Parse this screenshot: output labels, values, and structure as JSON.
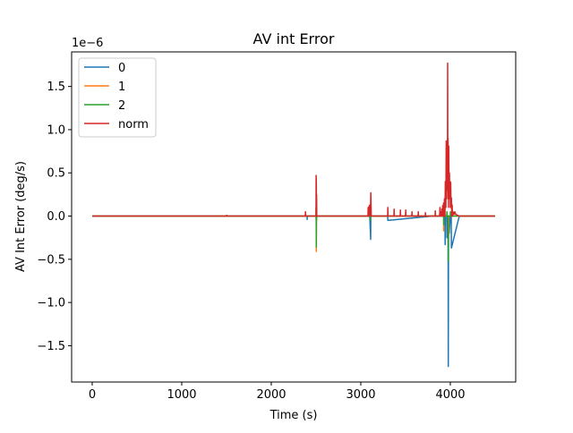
{
  "chart_data": {
    "type": "line",
    "title": "AV int Error",
    "xlabel": "Time (s)",
    "ylabel": "AV Int Error (deg/s)",
    "offset_label": "1e−6",
    "xlim": [
      -230,
      4730
    ],
    "ylim": [
      -1.92,
      1.9
    ],
    "x_ticks": [
      {
        "value": 0,
        "label": "0"
      },
      {
        "value": 1000,
        "label": "1000"
      },
      {
        "value": 2000,
        "label": "2000"
      },
      {
        "value": 3000,
        "label": "3000"
      },
      {
        "value": 4000,
        "label": "4000"
      }
    ],
    "y_ticks": [
      {
        "value": -1.5,
        "label": "−1.5"
      },
      {
        "value": -1.0,
        "label": "−1.0"
      },
      {
        "value": -0.5,
        "label": "−0.5"
      },
      {
        "value": 0.0,
        "label": "0.0"
      },
      {
        "value": 0.5,
        "label": "0.5"
      },
      {
        "value": 1.0,
        "label": "1.0"
      },
      {
        "value": 1.5,
        "label": "1.5"
      }
    ],
    "grid": false,
    "legend_position": "top-left",
    "series": [
      {
        "name": "0",
        "color": "#1f77b4",
        "x": [
          0,
          1000,
          2400,
          2401,
          2402,
          2500,
          2502,
          2504,
          3100,
          3110,
          3112,
          3114,
          3300,
          3302,
          3800,
          3940,
          3942,
          3944,
          3960,
          3962,
          3970,
          3975,
          3977,
          3980,
          3985,
          3987,
          4000,
          4010,
          4012,
          4100,
          4500
        ],
        "y": [
          0.0,
          0.0,
          0.0,
          -0.04,
          0.0,
          0.0,
          -0.05,
          0.0,
          0.0,
          -0.27,
          0.0,
          0.0,
          0.0,
          -0.05,
          0.0,
          0.0,
          -0.33,
          0.0,
          0.0,
          -0.25,
          0.0,
          0.0,
          -1.74,
          0.0,
          0.0,
          -0.2,
          0.0,
          0.0,
          -0.37,
          0.0,
          0.0
        ]
      },
      {
        "name": "1",
        "color": "#ff7f0e",
        "x": [
          0,
          2500,
          2501,
          2502,
          2503,
          2504,
          2506,
          3900,
          3925,
          3926,
          3927,
          3980,
          3981,
          3982,
          4500
        ],
        "y": [
          0.0,
          0.0,
          0.1,
          0.0,
          -0.41,
          -0.1,
          0.0,
          0.0,
          0.0,
          -0.17,
          0.0,
          0.0,
          -0.23,
          0.0,
          0.0
        ]
      },
      {
        "name": "2",
        "color": "#2ca02c",
        "x": [
          0,
          2500,
          2501,
          2502,
          2503,
          2504,
          2505,
          2507,
          3100,
          3105,
          3107,
          3110,
          3112,
          3500,
          3502,
          3504,
          3900,
          3925,
          3926,
          3927,
          3960,
          3962,
          3964,
          3975,
          3976,
          3977,
          4000,
          4002,
          4004,
          4100,
          4500
        ],
        "y": [
          0.0,
          0.0,
          0.1,
          0.0,
          -0.36,
          0.1,
          -0.05,
          0.0,
          0.0,
          0.1,
          -0.05,
          0.05,
          0.0,
          0.0,
          0.05,
          0.0,
          0.0,
          0.0,
          -0.1,
          0.0,
          0.0,
          0.05,
          0.0,
          0.0,
          -0.52,
          0.0,
          0.0,
          0.05,
          0.0,
          0.0,
          0.0
        ]
      },
      {
        "name": "norm",
        "color": "#d62728",
        "x": [
          0,
          1500,
          1502,
          1504,
          2380,
          2382,
          2384,
          2500,
          2501,
          2503,
          2504,
          2505,
          2506,
          2508,
          3080,
          3082,
          3084,
          3090,
          3094,
          3100,
          3104,
          3108,
          3112,
          3116,
          3120,
          3260,
          3300,
          3302,
          3304,
          3350,
          3370,
          3372,
          3374,
          3420,
          3440,
          3442,
          3444,
          3490,
          3500,
          3502,
          3504,
          3560,
          3570,
          3572,
          3574,
          3630,
          3640,
          3642,
          3644,
          3700,
          3720,
          3722,
          3724,
          3800,
          3830,
          3832,
          3834,
          3860,
          3880,
          3884,
          3886,
          3890,
          3894,
          3900,
          3904,
          3910,
          3914,
          3920,
          3924,
          3930,
          3934,
          3940,
          3944,
          3950,
          3954,
          3958,
          3962,
          3966,
          3968,
          3970,
          3972,
          3974,
          3976,
          3978,
          3980,
          3982,
          3986,
          3990,
          3994,
          3998,
          4000,
          4004,
          4008,
          4012,
          4016,
          4020,
          4024,
          4030,
          4040,
          4050,
          4060,
          4080,
          4100,
          4500
        ],
        "y": [
          0.0,
          0.0,
          0.01,
          0.0,
          0.0,
          0.05,
          0.0,
          0.0,
          0.47,
          0.38,
          0.0,
          0.16,
          0.25,
          0.0,
          0.0,
          0.1,
          0.0,
          0.0,
          0.12,
          0.0,
          0.13,
          0.05,
          0.27,
          0.0,
          0.0,
          0.0,
          0.0,
          0.1,
          0.0,
          0.0,
          0.0,
          0.08,
          0.0,
          0.0,
          0.0,
          0.07,
          0.0,
          0.0,
          0.0,
          0.07,
          0.0,
          0.0,
          0.0,
          0.05,
          0.0,
          0.0,
          0.0,
          0.05,
          0.0,
          0.0,
          0.0,
          0.04,
          0.0,
          0.0,
          0.0,
          0.06,
          0.0,
          0.0,
          0.0,
          0.1,
          0.02,
          0.0,
          0.05,
          0.0,
          0.08,
          0.0,
          0.12,
          0.0,
          0.15,
          0.0,
          0.2,
          0.0,
          0.4,
          0.1,
          0.87,
          0.2,
          0.69,
          0.3,
          0.5,
          1.77,
          0.6,
          0.9,
          0.2,
          0.4,
          0.1,
          0.81,
          0.3,
          0.5,
          0.2,
          0.4,
          0.1,
          0.39,
          0.1,
          0.21,
          0.0,
          0.13,
          0.0,
          0.05,
          0.02,
          0.05,
          0.02,
          0.01,
          0.0,
          0.0
        ]
      }
    ]
  }
}
